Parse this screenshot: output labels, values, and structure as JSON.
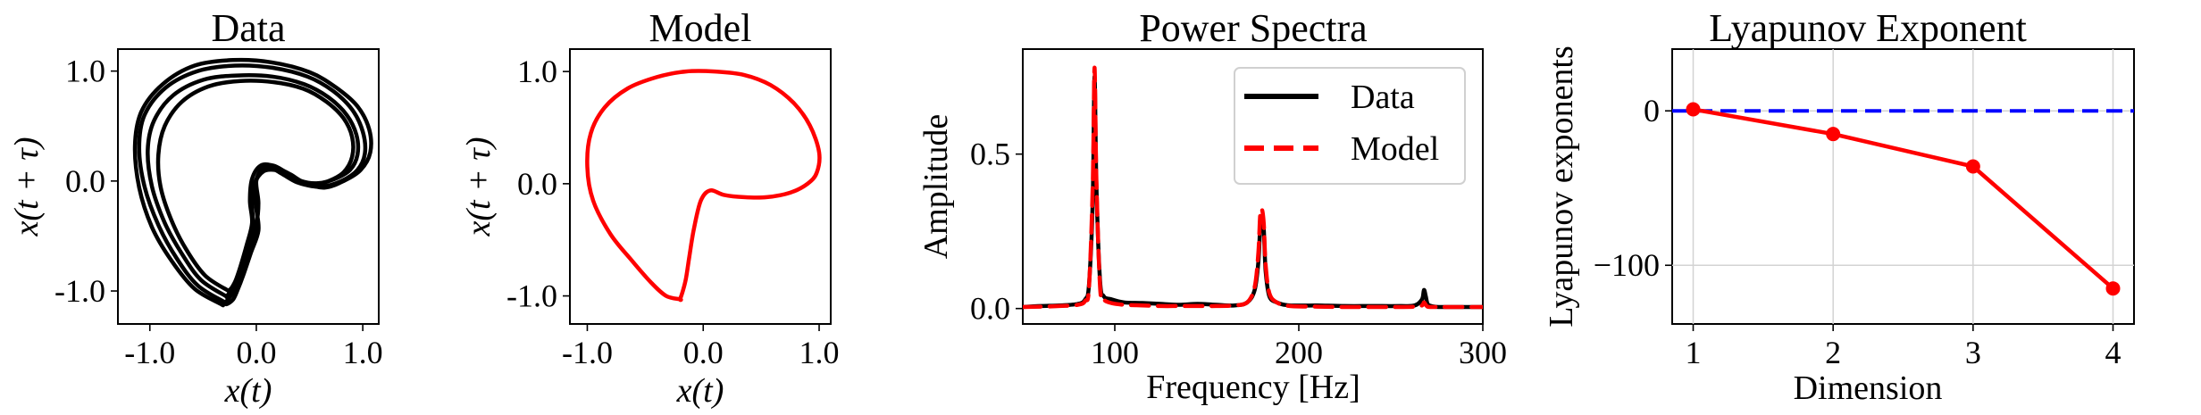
{
  "chart_data": [
    {
      "type": "line",
      "title": "Data",
      "xlabel": "x(t)",
      "ylabel": "x(t + τ)",
      "xlim": [
        -1.3,
        1.15
      ],
      "ylim": [
        -1.3,
        1.2
      ],
      "xticks": [
        -1.0,
        0.0,
        1.0
      ],
      "yticks": [
        -1.0,
        0.0,
        1.0
      ],
      "xtick_labels": [
        "-1.0",
        "0.0",
        "1.0"
      ],
      "ytick_labels": [
        "-1.0",
        "0.0",
        "1.0"
      ],
      "color": "#000000",
      "series": [
        {
          "x": [
            -0.3,
            -0.55,
            -0.75,
            -0.92,
            -1.05,
            -1.1,
            -1.05,
            -0.85,
            -0.55,
            -0.2,
            0.15,
            0.48,
            0.72,
            0.9,
            1.0,
            1.02,
            0.95,
            0.8,
            0.62,
            0.45,
            0.3,
            0.18,
            0.05,
            -0.02,
            0.0,
            0.02,
            -0.05,
            -0.12,
            -0.18,
            -0.22,
            -0.28,
            -0.3
          ],
          "y": [
            -1.1,
            -0.95,
            -0.7,
            -0.4,
            -0.05,
            0.3,
            0.6,
            0.85,
            1.0,
            1.05,
            1.03,
            0.95,
            0.82,
            0.65,
            0.45,
            0.25,
            0.1,
            0.0,
            -0.05,
            -0.03,
            0.05,
            0.1,
            0.08,
            -0.05,
            -0.25,
            -0.45,
            -0.65,
            -0.85,
            -1.0,
            -1.08,
            -1.12,
            -1.1
          ]
        },
        {
          "x": [
            -0.28,
            -0.52,
            -0.7,
            -0.86,
            -0.98,
            -1.02,
            -0.96,
            -0.78,
            -0.5,
            -0.18,
            0.15,
            0.45,
            0.68,
            0.85,
            0.94,
            0.95,
            0.88,
            0.74,
            0.58,
            0.42,
            0.28,
            0.16,
            0.04,
            -0.04,
            -0.06,
            -0.04,
            -0.09,
            -0.15,
            -0.2,
            -0.24,
            -0.28
          ],
          "y": [
            -1.05,
            -0.9,
            -0.66,
            -0.38,
            -0.05,
            0.28,
            0.55,
            0.78,
            0.92,
            0.96,
            0.95,
            0.88,
            0.76,
            0.6,
            0.42,
            0.24,
            0.1,
            0.02,
            -0.02,
            0.0,
            0.08,
            0.14,
            0.14,
            0.02,
            -0.18,
            -0.38,
            -0.58,
            -0.78,
            -0.92,
            -1.0,
            -1.05
          ]
        },
        {
          "x": [
            -0.26,
            -0.48,
            -0.66,
            -0.8,
            -0.9,
            -0.92,
            -0.86,
            -0.7,
            -0.45,
            -0.15,
            0.16,
            0.44,
            0.66,
            0.82,
            0.9,
            0.9,
            0.82,
            0.68,
            0.52,
            0.38,
            0.25,
            0.14,
            0.06,
            0.0,
            0.02,
            0.0,
            -0.06,
            -0.13,
            -0.19,
            -0.23,
            -0.26
          ],
          "y": [
            -1.0,
            -0.86,
            -0.62,
            -0.35,
            -0.05,
            0.24,
            0.5,
            0.72,
            0.86,
            0.91,
            0.9,
            0.84,
            0.72,
            0.57,
            0.4,
            0.22,
            0.08,
            0.0,
            -0.04,
            -0.01,
            0.06,
            0.12,
            0.12,
            0.0,
            -0.2,
            -0.4,
            -0.6,
            -0.78,
            -0.9,
            -0.97,
            -1.0
          ]
        },
        {
          "x": [
            -0.33,
            -0.58,
            -0.8,
            -0.98,
            -1.1,
            -1.14,
            -1.08,
            -0.88,
            -0.58,
            -0.22,
            0.14,
            0.5,
            0.75,
            0.95,
            1.06,
            1.07,
            0.98,
            0.82,
            0.64,
            0.46,
            0.32,
            0.2,
            0.07,
            -0.02,
            -0.04,
            -0.03,
            -0.08,
            -0.14,
            -0.2,
            -0.26,
            -0.31,
            -0.33
          ],
          "y": [
            -1.12,
            -0.98,
            -0.72,
            -0.42,
            -0.06,
            0.32,
            0.63,
            0.88,
            1.05,
            1.1,
            1.08,
            0.99,
            0.85,
            0.68,
            0.47,
            0.26,
            0.1,
            0.0,
            -0.06,
            -0.02,
            0.06,
            0.11,
            0.09,
            -0.03,
            -0.22,
            -0.42,
            -0.62,
            -0.82,
            -0.98,
            -1.07,
            -1.12,
            -1.12
          ]
        }
      ]
    },
    {
      "type": "line",
      "title": "Model",
      "xlabel": "x(t)",
      "ylabel": "x(t + τ)",
      "xlim": [
        -1.15,
        1.1
      ],
      "ylim": [
        -1.25,
        1.2
      ],
      "xticks": [
        -1.0,
        0.0,
        1.0
      ],
      "yticks": [
        -1.0,
        0.0,
        1.0
      ],
      "xtick_labels": [
        "-1.0",
        "0.0",
        "1.0"
      ],
      "ytick_labels": [
        "-1.0",
        "0.0",
        "1.0"
      ],
      "color": "#ff0000",
      "series": [
        {
          "x": [
            -0.2,
            -0.32,
            -0.45,
            -0.62,
            -0.8,
            -0.95,
            -1.0,
            -0.97,
            -0.85,
            -0.65,
            -0.4,
            -0.15,
            0.1,
            0.35,
            0.58,
            0.78,
            0.92,
            1.0,
            0.98,
            0.9,
            0.75,
            0.55,
            0.35,
            0.18,
            0.06,
            -0.02,
            -0.08,
            -0.12,
            -0.15,
            -0.18,
            -0.2
          ],
          "y": [
            -1.03,
            -1.0,
            -0.88,
            -0.68,
            -0.45,
            -0.15,
            0.15,
            0.45,
            0.68,
            0.85,
            0.95,
            1.0,
            1.0,
            0.97,
            0.88,
            0.72,
            0.52,
            0.28,
            0.1,
            0.0,
            -0.08,
            -0.12,
            -0.12,
            -0.1,
            -0.06,
            -0.15,
            -0.4,
            -0.65,
            -0.85,
            -0.97,
            -1.03
          ]
        }
      ]
    },
    {
      "type": "line",
      "title": "Power Spectra",
      "xlabel": "Frequency [Hz]",
      "ylabel": "Amplitude",
      "xlim": [
        50,
        300
      ],
      "ylim": [
        -0.05,
        0.84
      ],
      "xticks": [
        100,
        200,
        300
      ],
      "yticks": [
        0.0,
        0.5
      ],
      "xtick_labels": [
        "100",
        "200",
        "300"
      ],
      "ytick_labels": [
        "0.0",
        "0.5"
      ],
      "legend": "upper-right",
      "series": [
        {
          "name": "Data",
          "color": "#000000",
          "dash": "solid",
          "x": [
            50,
            60,
            70,
            80,
            84,
            86,
            88,
            89,
            90,
            92,
            94,
            98,
            105,
            115,
            125,
            135,
            145,
            155,
            165,
            172,
            176,
            178,
            179,
            180,
            181,
            182,
            184,
            188,
            195,
            210,
            225,
            240,
            255,
            263,
            267,
            268,
            269,
            270,
            272,
            276,
            285,
            300
          ],
          "y": [
            0.005,
            0.008,
            0.01,
            0.015,
            0.03,
            0.08,
            0.35,
            0.75,
            0.4,
            0.09,
            0.04,
            0.03,
            0.02,
            0.018,
            0.015,
            0.012,
            0.015,
            0.012,
            0.01,
            0.02,
            0.06,
            0.15,
            0.26,
            0.3,
            0.25,
            0.12,
            0.04,
            0.02,
            0.01,
            0.01,
            0.008,
            0.008,
            0.008,
            0.01,
            0.03,
            0.06,
            0.04,
            0.015,
            0.008,
            0.005,
            0.005,
            0.005
          ]
        },
        {
          "name": "Model",
          "color": "#ff0000",
          "dash": "dashed",
          "x": [
            50,
            60,
            70,
            80,
            84,
            86,
            88,
            89,
            90,
            92,
            94,
            98,
            105,
            115,
            125,
            135,
            145,
            155,
            165,
            172,
            176,
            178,
            179,
            180,
            181,
            182,
            184,
            188,
            195,
            210,
            225,
            240,
            255,
            263,
            267,
            268,
            269,
            270,
            272,
            276,
            285,
            300
          ],
          "y": [
            0.005,
            0.006,
            0.008,
            0.012,
            0.025,
            0.07,
            0.4,
            0.78,
            0.42,
            0.07,
            0.03,
            0.018,
            0.012,
            0.01,
            0.008,
            0.008,
            0.008,
            0.008,
            0.01,
            0.02,
            0.07,
            0.18,
            0.3,
            0.32,
            0.27,
            0.14,
            0.05,
            0.02,
            0.008,
            0.006,
            0.005,
            0.005,
            0.005,
            0.006,
            0.01,
            0.02,
            0.012,
            0.006,
            0.005,
            0.005,
            0.005,
            0.005
          ]
        }
      ]
    },
    {
      "type": "line",
      "title": "Lyapunov Exponent",
      "xlabel": "Dimension",
      "ylabel": "Lyapunov exponents",
      "xlim": [
        0.85,
        4.15
      ],
      "ylim": [
        -138,
        40
      ],
      "xticks": [
        1,
        2,
        3,
        4
      ],
      "yticks": [
        0,
        -100
      ],
      "xtick_labels": [
        "1",
        "2",
        "3",
        "4"
      ],
      "ytick_labels": [
        "0",
        "−100"
      ],
      "grid": true,
      "reference_line": {
        "y": 0,
        "color": "#0000ff",
        "dash": "dashed"
      },
      "series": [
        {
          "color": "#ff0000",
          "markers": true,
          "x": [
            1,
            2,
            3,
            4
          ],
          "y": [
            1,
            -15,
            -36,
            -115
          ]
        }
      ]
    }
  ]
}
